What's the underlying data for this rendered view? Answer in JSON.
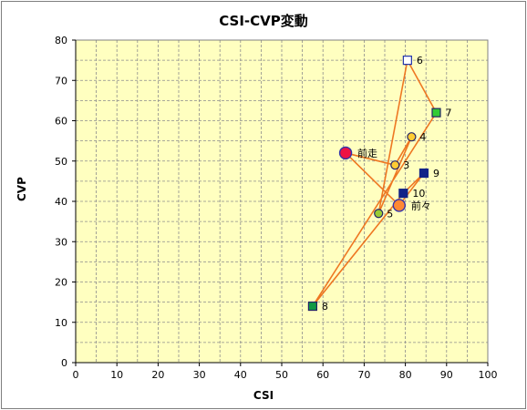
{
  "chart_data": {
    "type": "scatter",
    "title": "CSI-CVP変動",
    "xlabel": "CSI",
    "ylabel": "CVP",
    "xlim": [
      0,
      100
    ],
    "ylim": [
      0,
      80
    ],
    "x_ticks": [
      "0",
      "10",
      "20",
      "30",
      "40",
      "50",
      "60",
      "70",
      "80",
      "90",
      "100"
    ],
    "y_ticks": [
      "0",
      "10",
      "20",
      "30",
      "40",
      "50",
      "60",
      "70",
      "80"
    ],
    "grid": true,
    "plot_background": "#ffffc0",
    "line_color": "#ee7722",
    "path_order": [
      "8",
      "7",
      "6",
      "5",
      "4",
      "3",
      "前走",
      "前々",
      "9",
      "10",
      "8"
    ],
    "points": [
      {
        "label": "前走",
        "x": 65.5,
        "y": 52,
        "shape": "circle-large",
        "fill": "#ee1144",
        "stroke": "#3333aa"
      },
      {
        "label": "前々",
        "x": 78.5,
        "y": 39,
        "shape": "circle-large",
        "fill": "#ff8833",
        "stroke": "#3333aa"
      },
      {
        "label": "3",
        "x": 77.5,
        "y": 49,
        "shape": "circle",
        "fill": "#ffcc33",
        "stroke": "#222266"
      },
      {
        "label": "4",
        "x": 81.5,
        "y": 56,
        "shape": "circle",
        "fill": "#ffcc33",
        "stroke": "#222266"
      },
      {
        "label": "5",
        "x": 73.5,
        "y": 37,
        "shape": "circle",
        "fill": "#99cc33",
        "stroke": "#222266"
      },
      {
        "label": "6",
        "x": 80.5,
        "y": 75,
        "shape": "square",
        "fill": "#ffffff",
        "stroke": "#2233aa"
      },
      {
        "label": "7",
        "x": 87.5,
        "y": 62,
        "shape": "square",
        "fill": "#33cc33",
        "stroke": "#222266"
      },
      {
        "label": "8",
        "x": 57.5,
        "y": 14,
        "shape": "square",
        "fill": "#119944",
        "stroke": "#222266"
      },
      {
        "label": "9",
        "x": 84.5,
        "y": 47,
        "shape": "square",
        "fill": "#112288",
        "stroke": "#112288"
      },
      {
        "label": "10",
        "x": 79.5,
        "y": 42,
        "shape": "square",
        "fill": "#112288",
        "stroke": "#112288"
      }
    ]
  }
}
